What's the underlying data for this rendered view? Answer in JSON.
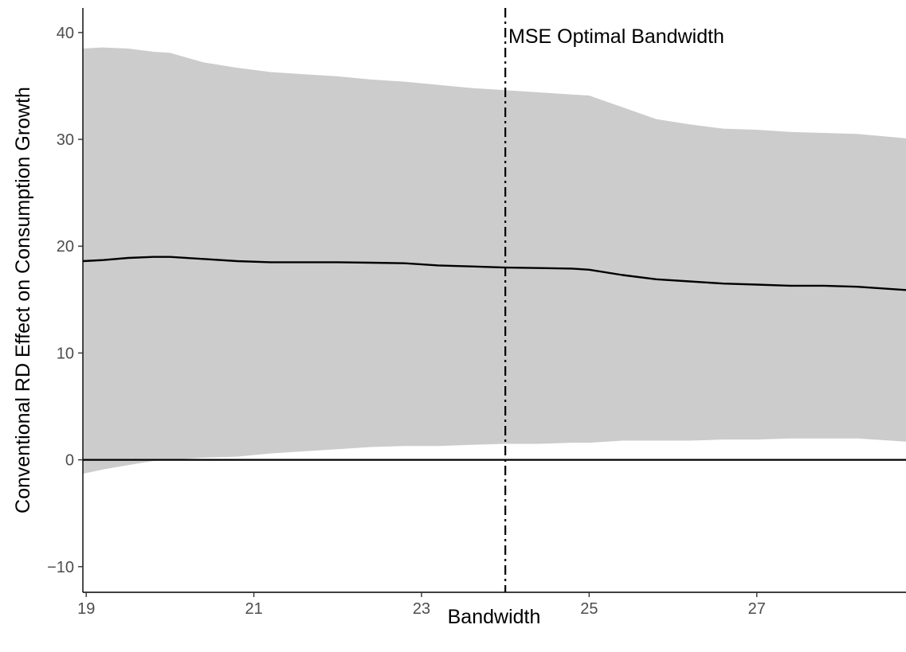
{
  "chart_data": {
    "type": "line",
    "title": "",
    "xlabel": "Bandwidth",
    "ylabel": "Conventional RD Effect on Consumption Growth",
    "xlim": [
      18.96,
      28.78
    ],
    "ylim": [
      -12.4,
      42.3
    ],
    "xticks": [
      19,
      21,
      23,
      25,
      27
    ],
    "yticks": [
      -10,
      0,
      10,
      20,
      30,
      40
    ],
    "xtick_labels": [
      "19",
      "21",
      "23",
      "25",
      "27"
    ],
    "ytick_labels": [
      "−10",
      "0",
      "10",
      "20",
      "30",
      "40"
    ],
    "grid": false,
    "series": [
      {
        "role": "estimate",
        "x": [
          18.96,
          19.2,
          19.5,
          19.8,
          20.0,
          20.4,
          20.8,
          21.2,
          21.6,
          22.0,
          22.4,
          22.8,
          23.2,
          23.6,
          24.0,
          24.4,
          24.8,
          25.0,
          25.4,
          25.8,
          26.2,
          26.6,
          27.0,
          27.4,
          27.8,
          28.2,
          28.78
        ],
        "y": [
          18.6,
          18.7,
          18.9,
          19.0,
          19.0,
          18.8,
          18.6,
          18.5,
          18.5,
          18.5,
          18.45,
          18.4,
          18.2,
          18.1,
          18.0,
          17.95,
          17.9,
          17.8,
          17.3,
          16.9,
          16.7,
          16.5,
          16.4,
          16.3,
          16.3,
          16.2,
          15.9
        ],
        "color": "#000000"
      }
    ],
    "confidence_band": {
      "x": [
        18.96,
        19.2,
        19.5,
        19.8,
        20.0,
        20.4,
        20.8,
        21.2,
        21.6,
        22.0,
        22.4,
        22.8,
        23.2,
        23.6,
        24.0,
        24.4,
        24.8,
        25.0,
        25.4,
        25.8,
        26.2,
        26.6,
        27.0,
        27.4,
        27.8,
        28.2,
        28.78
      ],
      "upper": [
        38.5,
        38.6,
        38.5,
        38.2,
        38.1,
        37.2,
        36.7,
        36.3,
        36.1,
        35.9,
        35.6,
        35.4,
        35.1,
        34.8,
        34.6,
        34.4,
        34.2,
        34.1,
        33.0,
        31.9,
        31.4,
        31.0,
        30.9,
        30.7,
        30.6,
        30.5,
        30.1
      ],
      "lower": [
        -1.3,
        -0.9,
        -0.5,
        -0.1,
        0.0,
        0.2,
        0.3,
        0.6,
        0.8,
        1.0,
        1.2,
        1.3,
        1.3,
        1.4,
        1.5,
        1.5,
        1.6,
        1.6,
        1.8,
        1.8,
        1.8,
        1.9,
        1.9,
        2.0,
        2.0,
        2.0,
        1.7
      ],
      "color": "#cccccc"
    },
    "reference_hline": {
      "y": 0,
      "color": "#000000"
    },
    "reference_vline": {
      "x": 24.0,
      "style": "dashdot",
      "label": "MSE Optimal Bandwidth"
    }
  }
}
